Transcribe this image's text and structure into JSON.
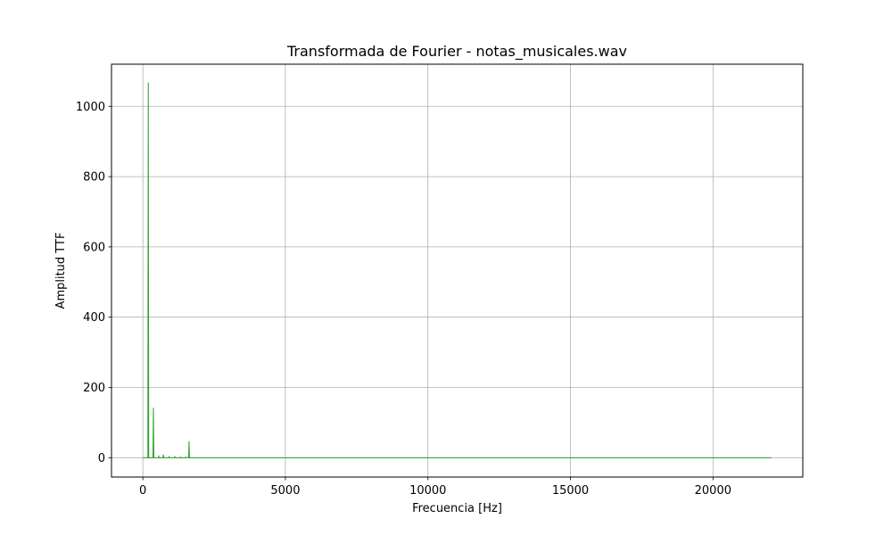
{
  "chart_data": {
    "type": "line",
    "title": "Transformada de Fourier - notas_musicales.wav",
    "xlabel": "Frecuencia [Hz]",
    "ylabel": "Amplitud TTF",
    "xlim": [
      -1100,
      23150
    ],
    "ylim": [
      -55,
      1120
    ],
    "grid": true,
    "xticks": [
      0,
      5000,
      10000,
      15000,
      20000
    ],
    "yticks": [
      0,
      200,
      400,
      600,
      800,
      1000
    ],
    "line_color": "#2ca02c",
    "series": [
      {
        "x": [
          0,
          150,
          175,
          190,
          205,
          230,
          330,
          355,
          370,
          385,
          410,
          520,
          545,
          560,
          575,
          600,
          680,
          705,
          720,
          735,
          760,
          880,
          905,
          920,
          935,
          960,
          1080,
          1105,
          1120,
          1135,
          1160,
          1280,
          1305,
          1320,
          1335,
          1360,
          1460,
          1485,
          1500,
          1515,
          1540,
          1580,
          1605,
          1620,
          1635,
          1660,
          3000,
          6000,
          10000,
          14000,
          18000,
          22050
        ],
        "y": [
          0,
          0,
          0,
          1068,
          0,
          0,
          0,
          0,
          142,
          0,
          0,
          0,
          0,
          4,
          0,
          0,
          0,
          0,
          9,
          0,
          0,
          0,
          0,
          3,
          0,
          0,
          0,
          0,
          3,
          0,
          0,
          0,
          0,
          2,
          0,
          0,
          0,
          0,
          2,
          0,
          0,
          0,
          0,
          47,
          0,
          0,
          0,
          0,
          0,
          0,
          0,
          0
        ]
      }
    ]
  }
}
